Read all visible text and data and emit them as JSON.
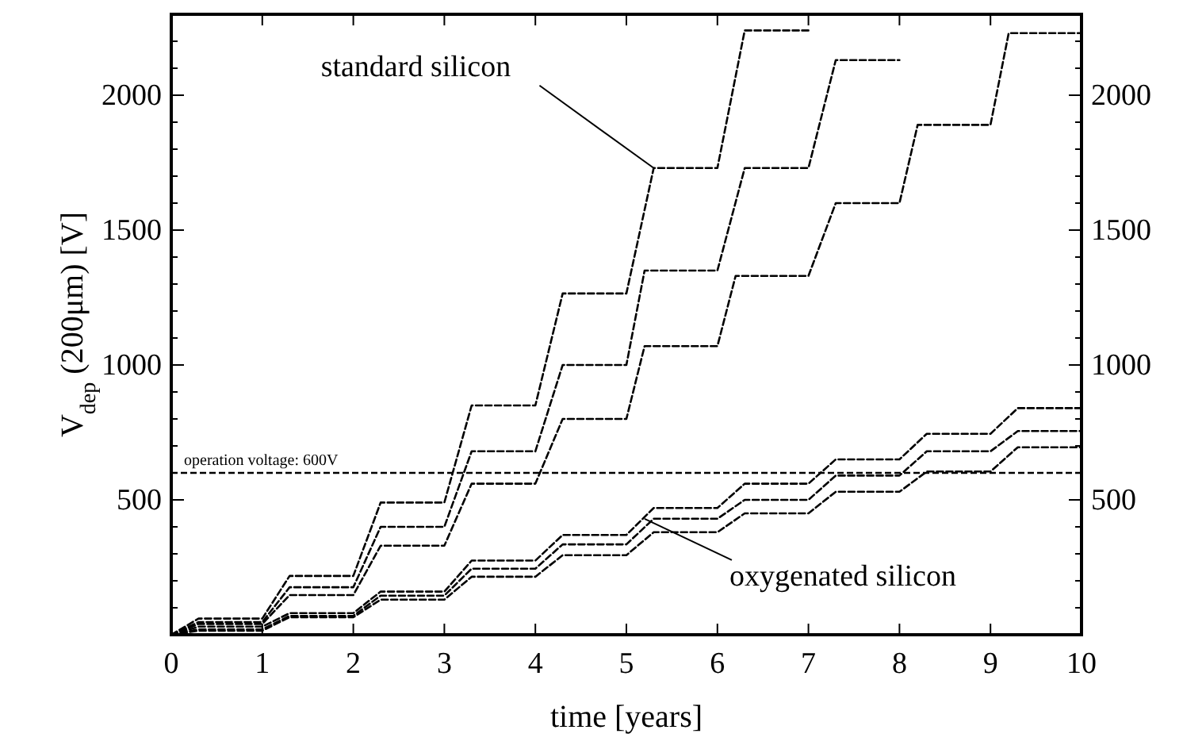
{
  "chart_data": {
    "type": "line",
    "xlabel": "time [years]",
    "ylabel": "V$_{dep}$ (200μm) [V]",
    "xlim": [
      0,
      10
    ],
    "xticks": [
      0,
      1,
      2,
      3,
      4,
      5,
      6,
      7,
      8,
      9,
      10
    ],
    "ylim": [
      0,
      2300
    ],
    "yticks": [
      {
        "value": 100,
        "label": null
      },
      {
        "value": 200,
        "label": null
      },
      {
        "value": 300,
        "label": null
      },
      {
        "value": 400,
        "label": null
      },
      500,
      {
        "value": 600,
        "label": null
      },
      {
        "value": 700,
        "label": null
      },
      {
        "value": 800,
        "label": null
      },
      {
        "value": 900,
        "label": null
      },
      1000,
      {
        "value": 1100,
        "label": null
      },
      {
        "value": 1200,
        "label": null
      },
      {
        "value": 1300,
        "label": null
      },
      {
        "value": 1400,
        "label": null
      },
      1500,
      {
        "value": 1600,
        "label": null
      },
      {
        "value": 1700,
        "label": null
      },
      {
        "value": 1800,
        "label": null
      },
      {
        "value": 1900,
        "label": null
      },
      2000,
      {
        "value": 2100,
        "label": null
      },
      {
        "value": 2200,
        "label": null
      }
    ],
    "y2lim": [
      0,
      2300
    ],
    "y2ticks": [
      {
        "value": 100,
        "label": null
      },
      {
        "value": 200,
        "label": null
      },
      {
        "value": 300,
        "label": null
      },
      {
        "value": 400,
        "label": null
      },
      500,
      {
        "value": 600,
        "label": null
      },
      {
        "value": 700,
        "label": null
      },
      {
        "value": 800,
        "label": null
      },
      {
        "value": 900,
        "label": null
      },
      1000,
      {
        "value": 1100,
        "label": null
      },
      {
        "value": 1200,
        "label": null
      },
      {
        "value": 1300,
        "label": null
      },
      {
        "value": 1400,
        "label": null
      },
      1500,
      {
        "value": 1600,
        "label": null
      },
      {
        "value": 1700,
        "label": null
      },
      {
        "value": 1800,
        "label": null
      },
      {
        "value": 1900,
        "label": null
      },
      2000,
      {
        "value": 2100,
        "label": null
      },
      {
        "value": 2200,
        "label": null
      }
    ],
    "grid": false,
    "line_style": "dashed",
    "marker": "none",
    "series": [
      {
        "color": "#000000",
        "x": [
          0,
          0.3,
          1,
          1.3,
          2,
          2.3,
          3,
          3.3,
          4,
          4.3,
          5,
          5.3,
          6,
          6.3,
          7
        ],
        "values": [
          0,
          60,
          60,
          218,
          218,
          490,
          490,
          850,
          850,
          1265,
          1265,
          1730,
          1730,
          2240,
          2240
        ]
      },
      {
        "color": "#000000",
        "x": [
          0,
          0.3,
          1,
          1.3,
          2,
          2.3,
          3,
          3.3,
          4,
          4.3,
          5,
          5.2,
          6,
          6.3,
          7,
          7.3,
          8
        ],
        "values": [
          0,
          47,
          47,
          176,
          176,
          400,
          400,
          680,
          680,
          1000,
          1000,
          1350,
          1350,
          1730,
          1730,
          2130,
          2130
        ]
      },
      {
        "color": "#000000",
        "x": [
          0,
          0.3,
          1,
          1.3,
          2,
          2.3,
          3,
          3.3,
          4,
          4.3,
          5,
          5.2,
          6,
          6.2,
          7,
          7.3,
          8,
          8.2,
          9,
          9.2,
          10
        ],
        "values": [
          0,
          40,
          40,
          147,
          147,
          330,
          330,
          560,
          560,
          800,
          800,
          1070,
          1070,
          1330,
          1330,
          1600,
          1600,
          1890,
          1890,
          2230,
          2230
        ]
      },
      {
        "color": "#000000",
        "x": [
          0,
          0.3,
          1,
          1.3,
          2,
          2.3,
          3,
          3.3,
          4,
          4.3,
          5,
          5.3,
          6,
          6.3,
          7,
          7.3,
          8,
          8.3,
          9,
          9.3,
          10
        ],
        "values": [
          0,
          30,
          30,
          80,
          80,
          160,
          160,
          275,
          275,
          370,
          370,
          470,
          470,
          560,
          560,
          650,
          650,
          745,
          745,
          840,
          840
        ]
      },
      {
        "color": "#000000",
        "x": [
          0,
          0.3,
          1,
          1.3,
          2,
          2.3,
          3,
          3.3,
          4,
          4.3,
          5,
          5.3,
          6,
          6.3,
          7,
          7.3,
          8,
          8.3,
          9,
          9.3,
          10
        ],
        "values": [
          0,
          20,
          20,
          70,
          70,
          145,
          145,
          245,
          245,
          335,
          335,
          430,
          430,
          500,
          500,
          590,
          590,
          680,
          680,
          755,
          755
        ]
      },
      {
        "color": "#000000",
        "x": [
          0,
          0.3,
          1,
          1.3,
          2,
          2.3,
          3,
          3.3,
          4,
          4.3,
          5,
          5.3,
          6,
          6.3,
          7,
          7.3,
          8,
          8.3,
          9,
          9.3,
          10
        ],
        "values": [
          0,
          15,
          15,
          65,
          65,
          130,
          130,
          215,
          215,
          295,
          295,
          380,
          380,
          450,
          450,
          530,
          530,
          605,
          605,
          695,
          695
        ]
      }
    ],
    "ref_lines": [
      {
        "axis": "y",
        "value": 600,
        "label": "operation voltage: 600V",
        "color": "#000000",
        "line_style": "dashed"
      }
    ],
    "annotations": [
      {
        "text": "standard silicon",
        "x": 5.3,
        "y": 1730
      },
      {
        "text": "oxygenated silicon",
        "x": 5.2,
        "y": 430
      }
    ]
  }
}
